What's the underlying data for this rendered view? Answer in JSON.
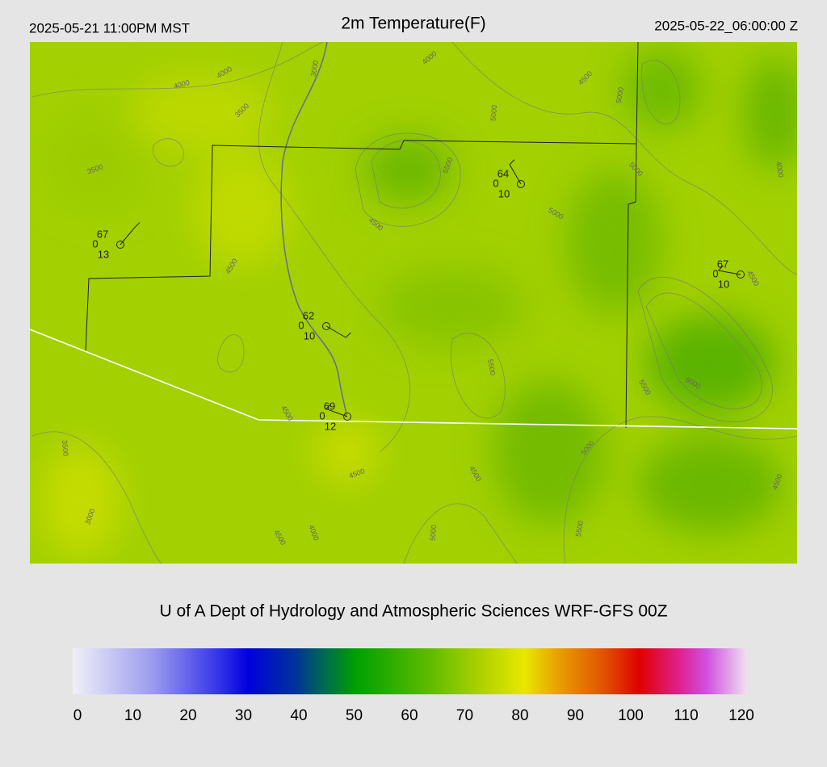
{
  "header": {
    "local_time": "2025-05-21 11:00PM MST",
    "title": "2m Temperature(F)",
    "valid_time": "2025-05-22_06:00:00 Z"
  },
  "stations": [
    {
      "temperature": 67,
      "dewpoint": 0,
      "wind_speed": 13
    },
    {
      "temperature": 64,
      "dewpoint": 0,
      "wind_speed": 10
    },
    {
      "temperature": 67,
      "dewpoint": 0,
      "wind_speed": 10
    },
    {
      "temperature": 62,
      "dewpoint": 0,
      "wind_speed": 10
    },
    {
      "temperature": 69,
      "dewpoint": 0,
      "wind_speed": 12
    }
  ],
  "contour_labels": [
    4000,
    4000,
    3000,
    4000,
    4500,
    5000,
    3500,
    3500,
    5000,
    5500,
    5000,
    4000,
    5000,
    4500,
    4500,
    4500,
    5500,
    5500,
    6000,
    4500,
    5000,
    3500,
    4500,
    4500,
    4500,
    3000,
    4000,
    4500,
    5000,
    5500
  ],
  "credit": "U of A Dept of Hydrology and Atmospheric Sciences WRF-GFS 00Z",
  "colorbar": {
    "lim": [
      0,
      120
    ],
    "ticks": [
      0,
      10,
      20,
      30,
      40,
      50,
      60,
      70,
      80,
      90,
      100,
      110,
      120
    ]
  }
}
